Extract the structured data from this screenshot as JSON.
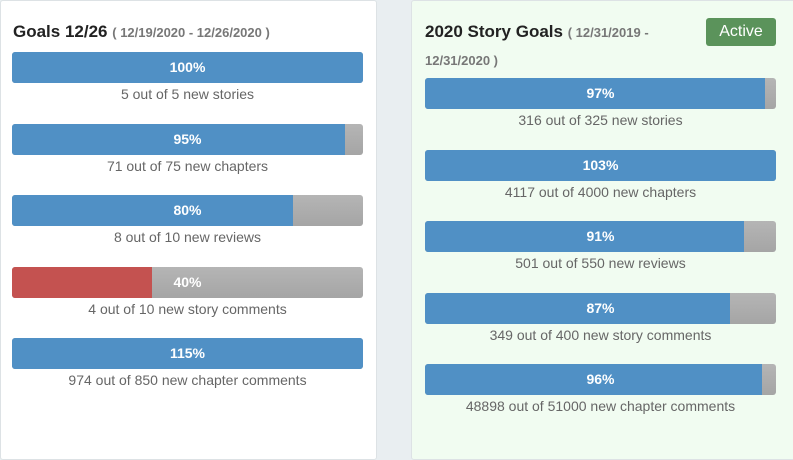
{
  "left": {
    "title": "Goals 12/26",
    "range": "( 12/19/2020 - 12/26/2020 )",
    "goals": [
      {
        "value": 100,
        "label": "100%",
        "text": "5 out of 5 new stories",
        "color": "#5090c5"
      },
      {
        "value": 95,
        "label": "95%",
        "text": "71 out of 75 new chapters",
        "color": "#5090c5"
      },
      {
        "value": 80,
        "label": "80%",
        "text": "8 out of 10 new reviews",
        "color": "#5090c5"
      },
      {
        "value": 40,
        "label": "40%",
        "text": "4 out of 10 new story comments",
        "color": "#c45250"
      },
      {
        "value": 115,
        "label": "115%",
        "text": "974 out of 850 new chapter comments",
        "color": "#5090c5"
      }
    ]
  },
  "right": {
    "title": "2020 Story Goals",
    "range": "( 12/31/2019 - 12/31/2020 )",
    "badge": "Active",
    "goals": [
      {
        "value": 97,
        "label": "97%",
        "text": "316 out of 325 new stories",
        "color": "#5090c5"
      },
      {
        "value": 103,
        "label": "103%",
        "text": "4117 out of 4000 new chapters",
        "color": "#5090c5"
      },
      {
        "value": 91,
        "label": "91%",
        "text": "501 out of 550 new reviews",
        "color": "#5090c5"
      },
      {
        "value": 87,
        "label": "87%",
        "text": "349 out of 400 new story comments",
        "color": "#5090c5"
      },
      {
        "value": 96,
        "label": "96%",
        "text": "48898 out of 51000 new chapter comments",
        "color": "#5090c5"
      }
    ]
  }
}
